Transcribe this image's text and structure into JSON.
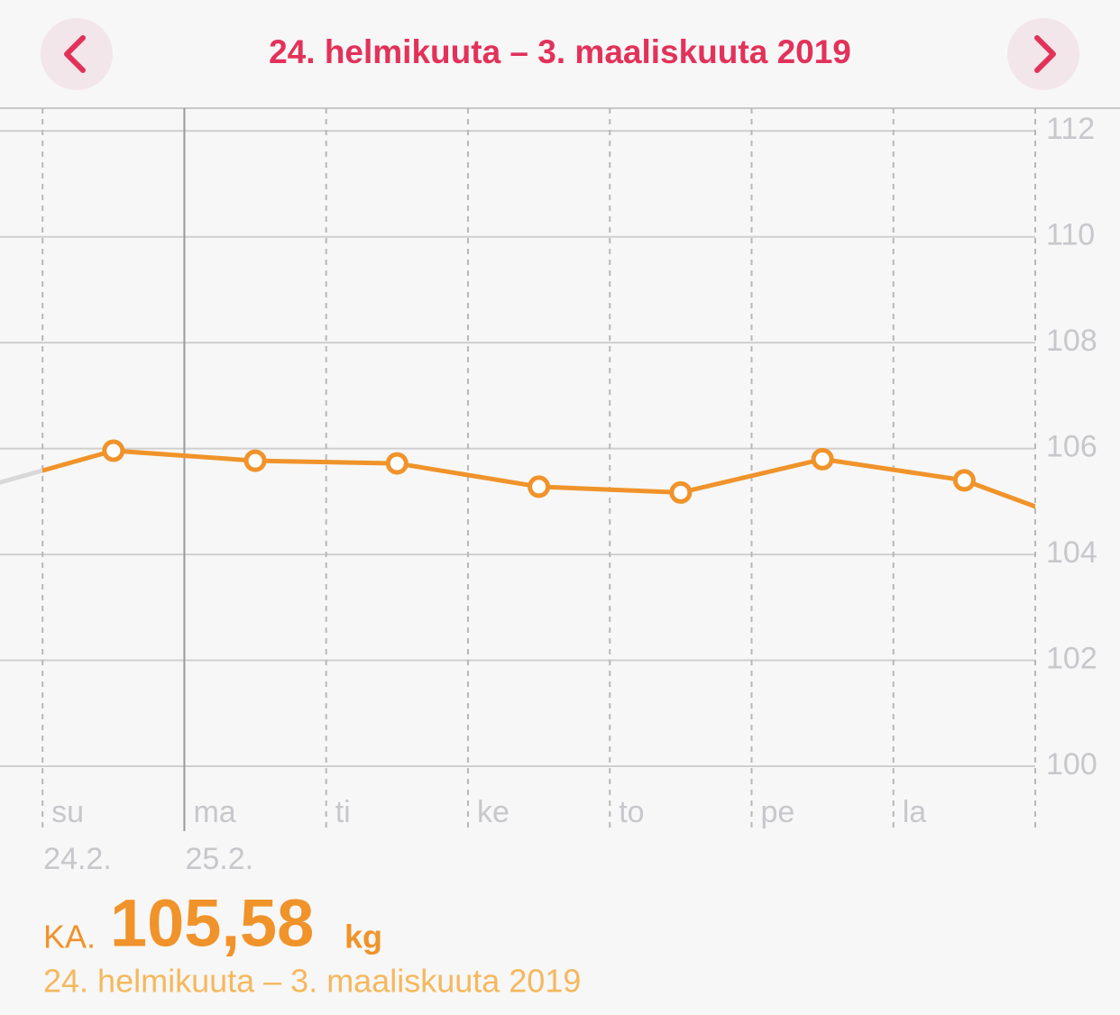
{
  "header": {
    "title": "24. helmikuuta – 3. maaliskuuta 2019"
  },
  "chart_data": {
    "type": "line",
    "x": [
      -0.5,
      0.5,
      1.5,
      2.5,
      3.5,
      4.5,
      5.5,
      6.5,
      7.5
    ],
    "series": [
      {
        "color": "#f0932a",
        "values": [
          105.21,
          105.96,
          105.77,
          105.72,
          105.28,
          105.17,
          105.8,
          105.4,
          104.41
        ]
      }
    ],
    "outside_color": "#d8d8d8",
    "categories": [
      "su",
      "ma",
      "ti",
      "ke",
      "to",
      "pe",
      "la"
    ],
    "date_labels": [
      {
        "value": 0,
        "label": "24.2."
      },
      {
        "value": 1,
        "label": "25.2."
      }
    ],
    "week_start": 1,
    "xlim": [
      -0.3,
      7
    ],
    "xticks": [
      0,
      1,
      2,
      3,
      4,
      5,
      6,
      7
    ],
    "ylim": [
      100,
      112.43
    ],
    "yticks": [
      100,
      102,
      104,
      106,
      108,
      110,
      112
    ],
    "grid": true
  },
  "summary": {
    "prefix": "KA.",
    "value": "105,58",
    "unit": "kg",
    "range": "24. helmikuuta – 3. maaliskuuta 2019"
  }
}
